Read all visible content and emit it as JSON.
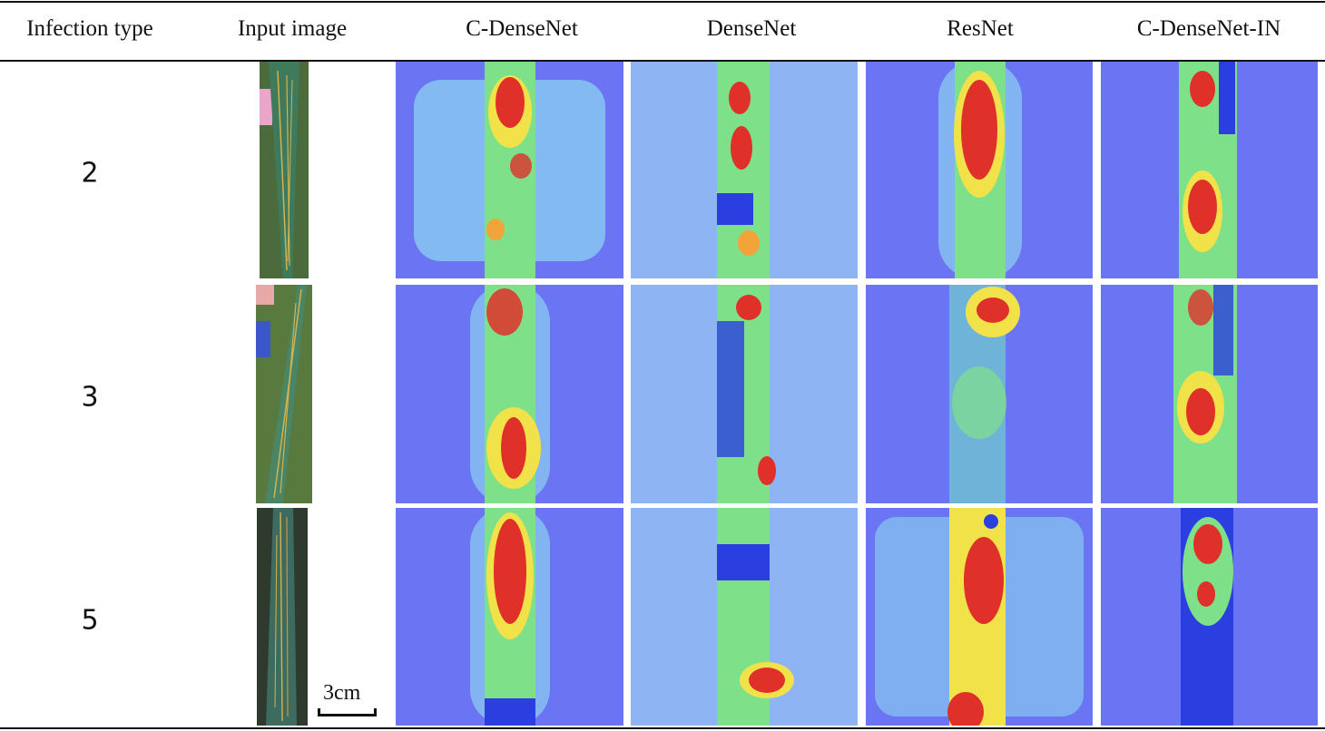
{
  "table": {
    "headers": [
      "Infection type",
      "Input image",
      "C-DenseNet",
      "DenseNet",
      "ResNet",
      "C-DenseNet-IN"
    ],
    "rows": [
      {
        "infection_type": "2"
      },
      {
        "infection_type": "3"
      },
      {
        "infection_type": "5"
      }
    ],
    "scale_bar_label": "3cm"
  },
  "colors": {
    "heatmap_background": "#6b74f2",
    "heatmap_cool": "#2b3fe0",
    "heatmap_mid": "#7fe08a",
    "heatmap_warm": "#f2e24a",
    "heatmap_hot": "#e0302a",
    "leaf_green": "#3f7a5c",
    "leaf_stripe": "#d6b34a",
    "rule": "#111111"
  }
}
